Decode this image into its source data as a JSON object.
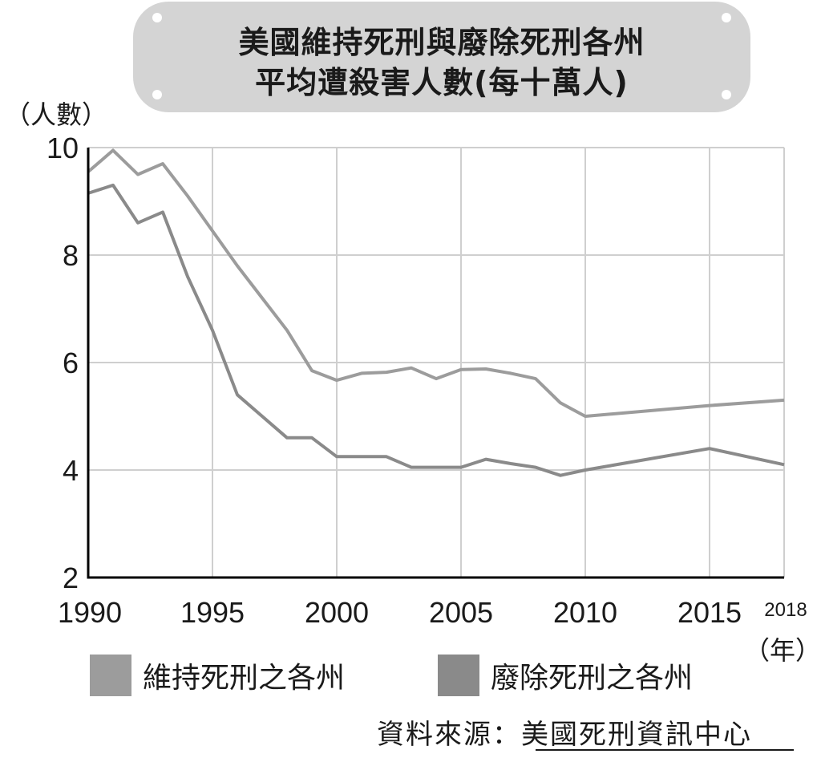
{
  "title": {
    "line1": "美國維持死刑與廢除死刑各州",
    "line2": "平均遭殺害人數(每十萬人)"
  },
  "y_unit": "（人數）",
  "x_unit": "（年）",
  "source": {
    "label": "資料來源：",
    "name": "美國死刑資訊中心"
  },
  "colors": {
    "retain": "#9c9c9c",
    "abolish": "#8a8a8a",
    "grid": "#cfcfcf",
    "axis": "#000000",
    "title_bg": "#d4d4d4"
  },
  "chart_data": {
    "type": "line",
    "title": "美國維持死刑與廢除死刑各州平均遭殺害人數(每十萬人)",
    "xlabel": "（年）",
    "ylabel": "（人數）",
    "xlim": [
      1990,
      2018
    ],
    "ylim": [
      2,
      10
    ],
    "y_ticks": [
      "2",
      "4",
      "6",
      "8",
      "10"
    ],
    "x_ticks": [
      "1990",
      "1995",
      "2000",
      "2005",
      "2010",
      "2015",
      "2018"
    ],
    "grid": true,
    "legend": "bottom",
    "series": [
      {
        "name": "維持死刑之各州",
        "x": [
          1990,
          1991,
          1992,
          1993,
          1994,
          1995,
          1996,
          1997,
          1998,
          1999,
          2000,
          2001,
          2002,
          2003,
          2004,
          2005,
          2006,
          2007,
          2008,
          2009,
          2010,
          2015,
          2018
        ],
        "values": [
          9.55,
          9.95,
          9.5,
          9.7,
          9.1,
          8.45,
          7.8,
          7.2,
          6.6,
          5.85,
          5.67,
          5.8,
          5.82,
          5.9,
          5.7,
          5.87,
          5.88,
          5.8,
          5.7,
          5.25,
          5.0,
          5.2,
          5.3
        ]
      },
      {
        "name": "廢除死刑之各州",
        "x": [
          1990,
          1991,
          1992,
          1993,
          1994,
          1995,
          1996,
          1997,
          1998,
          1999,
          2000,
          2001,
          2002,
          2003,
          2004,
          2005,
          2006,
          2007,
          2008,
          2009,
          2010,
          2015,
          2018
        ],
        "values": [
          9.15,
          9.3,
          8.6,
          8.8,
          7.6,
          6.6,
          5.4,
          5.0,
          4.6,
          4.6,
          4.25,
          4.25,
          4.25,
          4.05,
          4.05,
          4.05,
          4.2,
          4.12,
          4.05,
          3.9,
          4.0,
          4.4,
          4.1
        ]
      }
    ]
  }
}
